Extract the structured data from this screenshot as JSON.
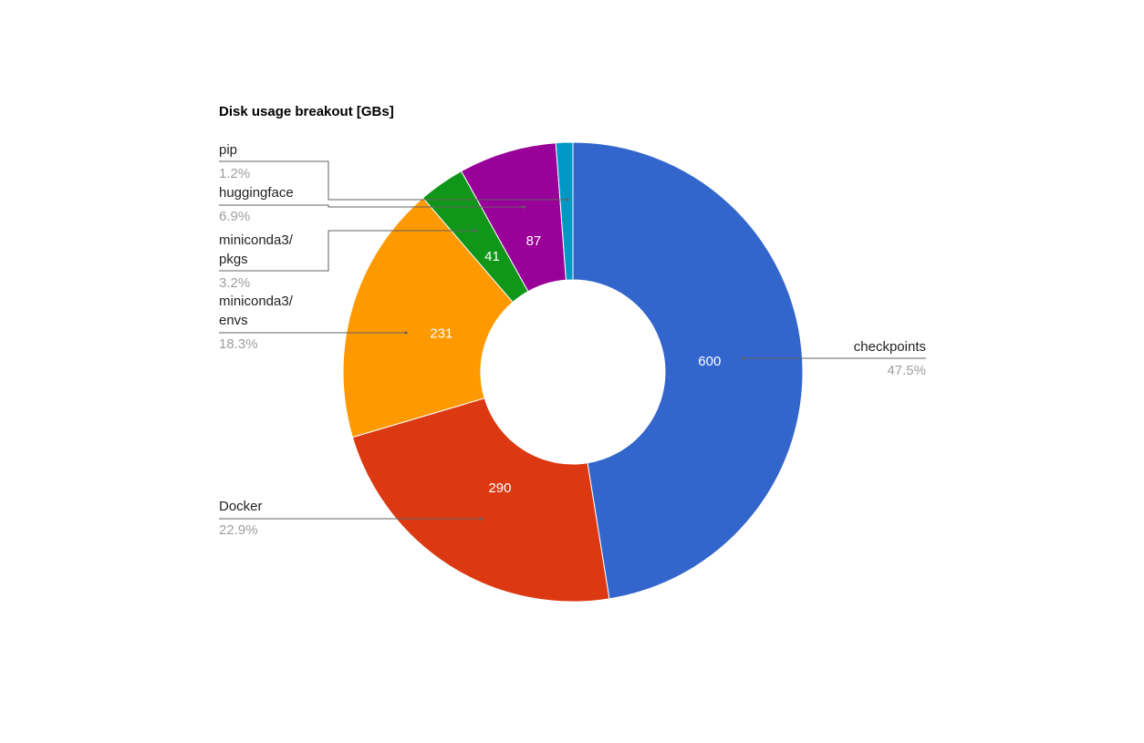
{
  "chart_data": {
    "type": "pie",
    "donut": true,
    "title": "Disk usage breakout [GBs]",
    "slices": [
      {
        "label": "checkpoints",
        "value": 600,
        "percent": "47.5%",
        "color": "#3366cc",
        "show_value": true
      },
      {
        "label": "Docker",
        "value": 290,
        "percent": "22.9%",
        "color": "#dc3912",
        "show_value": true
      },
      {
        "label": "miniconda3/\nenvs",
        "value": 231,
        "percent": "18.3%",
        "color": "#ff9900",
        "show_value": true
      },
      {
        "label": "miniconda3/\npkgs",
        "value": 41,
        "percent": "3.2%",
        "color": "#109618",
        "show_value": true
      },
      {
        "label": "huggingface",
        "value": 87,
        "percent": "6.9%",
        "color": "#990099",
        "show_value": true
      },
      {
        "label": "pip",
        "value": 15,
        "percent": "1.2%",
        "color": "#0099c6",
        "show_value": false
      }
    ],
    "legend": "labeled",
    "start_angle": "top",
    "direction": "clockwise"
  }
}
